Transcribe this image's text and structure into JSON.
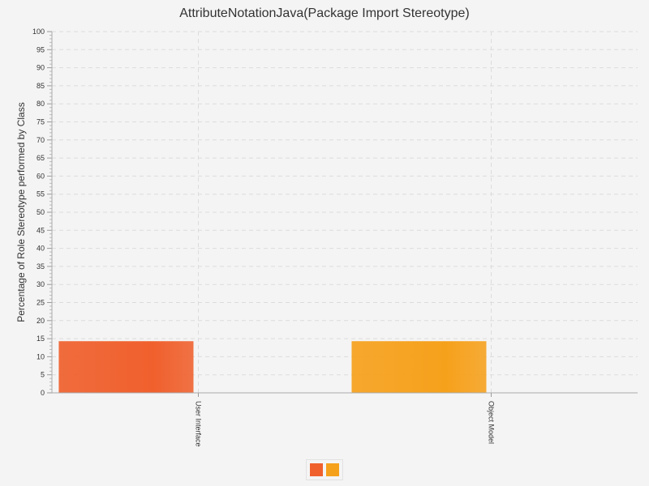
{
  "chart_data": {
    "type": "bar",
    "title": "AttributeNotationJava(Package Import Stereotype)",
    "ylabel": "Percentage of Role Stereotype performed by Class",
    "xlabel": "",
    "categories": [
      "User Interface",
      "Object Model"
    ],
    "values": [
      14.3,
      14.3
    ],
    "bar_colors": [
      "#f0602d",
      "#f6a11c"
    ],
    "ylim": [
      0,
      100
    ],
    "y_major_step": 5,
    "y_minor_step": 1,
    "grid": true,
    "legend": {
      "placement": "bottom-center",
      "colors": [
        "#f0602d",
        "#f6a11c"
      ]
    }
  }
}
